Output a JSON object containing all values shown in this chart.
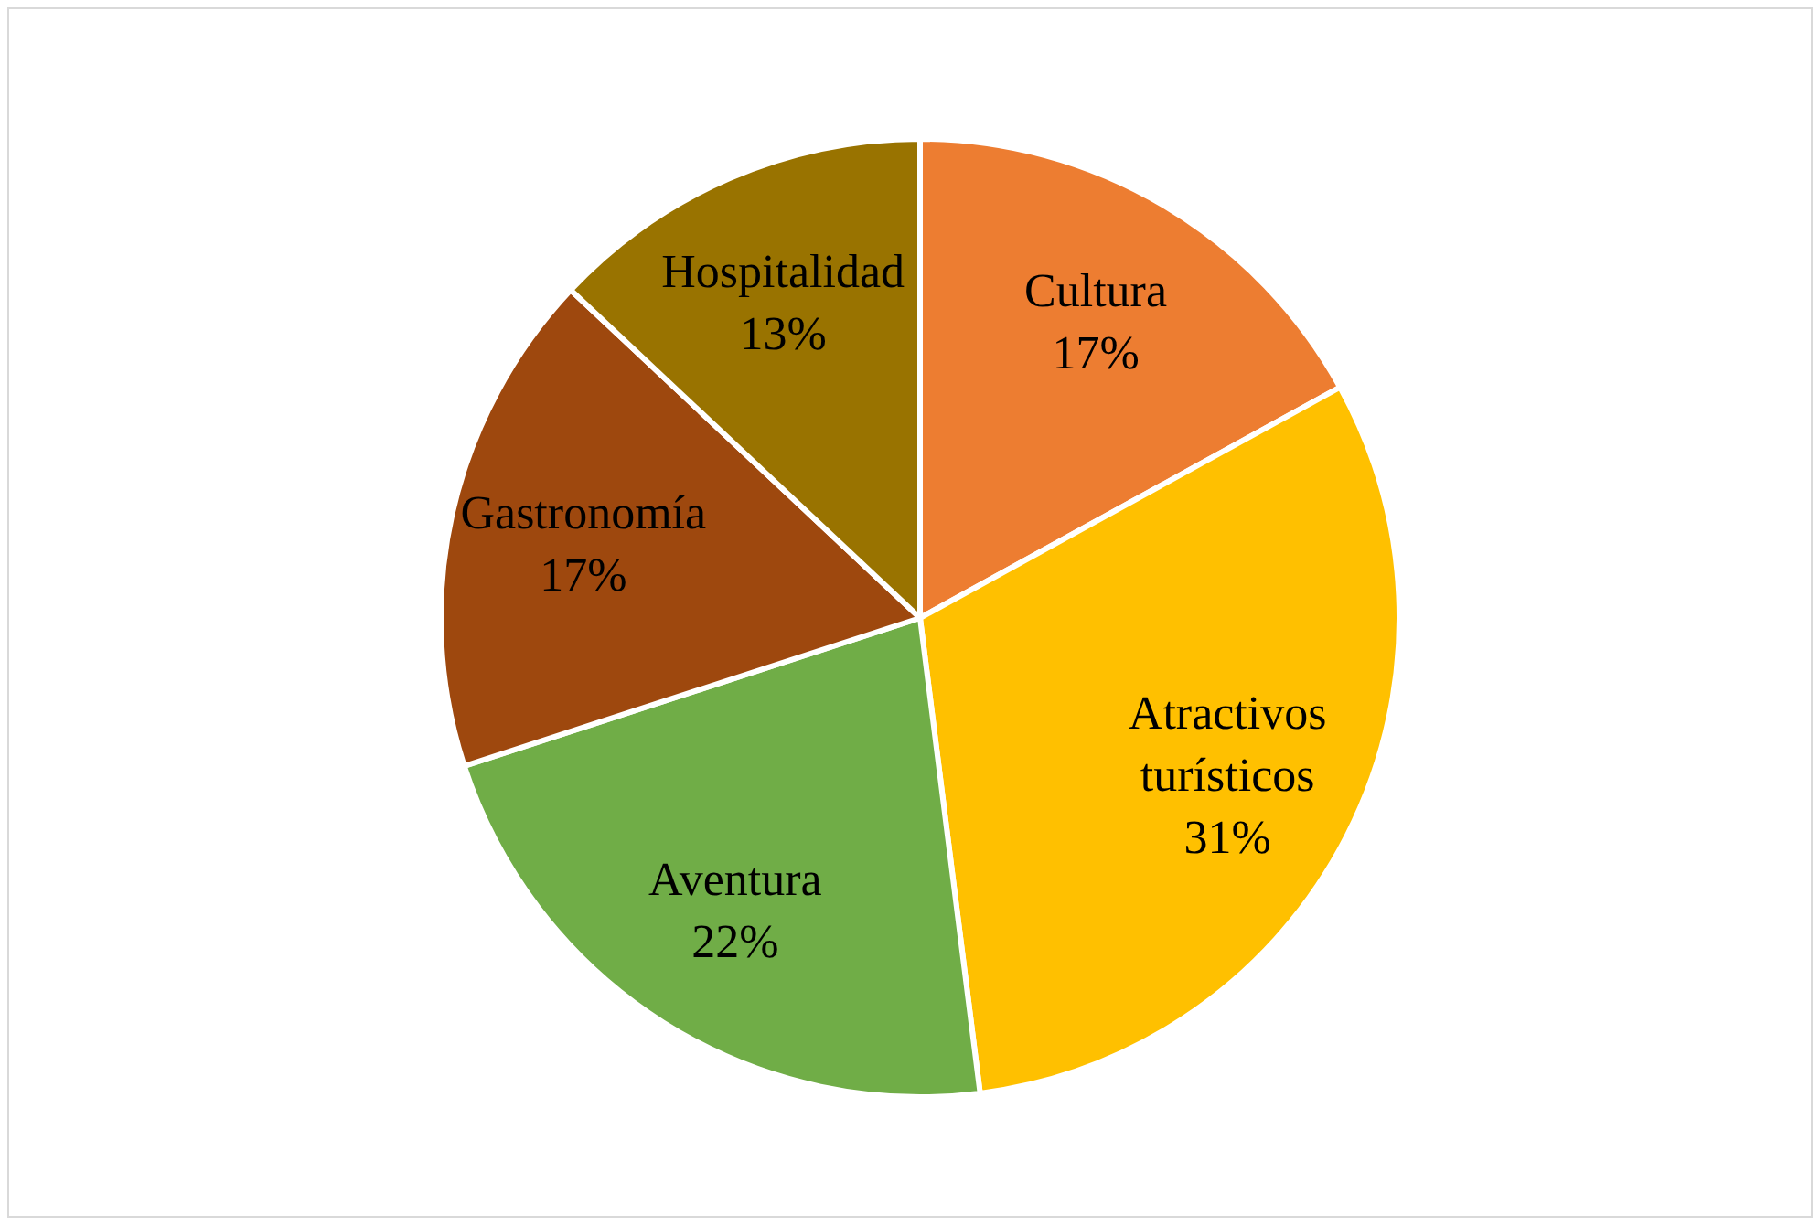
{
  "chart_data": {
    "type": "pie",
    "categories": [
      "Cultura",
      "Atractivos turísticos",
      "Aventura",
      "Gastronomía",
      "Hospitalidad"
    ],
    "values": [
      17,
      31,
      22,
      17,
      13
    ],
    "colors": [
      "#ed7d31",
      "#ffc000",
      "#70ad47",
      "#9e480e",
      "#997300"
    ],
    "value_labels": [
      "17%",
      "31%",
      "22%",
      "17%",
      "13%"
    ]
  }
}
